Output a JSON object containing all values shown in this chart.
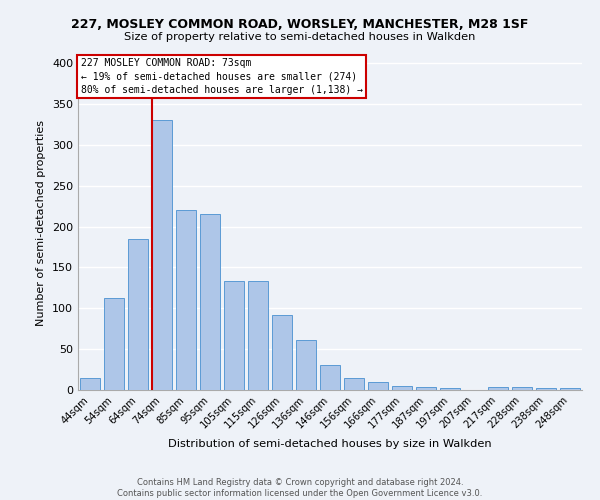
{
  "title_line1": "227, MOSLEY COMMON ROAD, WORSLEY, MANCHESTER, M28 1SF",
  "title_line2": "Size of property relative to semi-detached houses in Walkden",
  "xlabel": "Distribution of semi-detached houses by size in Walkden",
  "ylabel": "Number of semi-detached properties",
  "footer": "Contains HM Land Registry data © Crown copyright and database right 2024.\nContains public sector information licensed under the Open Government Licence v3.0.",
  "categories": [
    "44sqm",
    "54sqm",
    "64sqm",
    "74sqm",
    "85sqm",
    "95sqm",
    "105sqm",
    "115sqm",
    "126sqm",
    "136sqm",
    "146sqm",
    "156sqm",
    "166sqm",
    "177sqm",
    "187sqm",
    "197sqm",
    "207sqm",
    "217sqm",
    "228sqm",
    "238sqm",
    "248sqm"
  ],
  "values": [
    15,
    113,
    185,
    330,
    220,
    216,
    133,
    133,
    92,
    61,
    31,
    15,
    10,
    5,
    4,
    2,
    0,
    4,
    4,
    3,
    3
  ],
  "bar_color": "#aec6e8",
  "bar_edge_color": "#5b9bd5",
  "property_label": "227 MOSLEY COMMON ROAD: 73sqm",
  "annotation_line2": "← 19% of semi-detached houses are smaller (274)",
  "annotation_line3": "80% of semi-detached houses are larger (1,138) →",
  "vline_color": "#cc0000",
  "vline_x_index": 3,
  "annotation_box_color": "#cc0000",
  "ylim": [
    0,
    410
  ],
  "yticks": [
    0,
    50,
    100,
    150,
    200,
    250,
    300,
    350,
    400
  ],
  "background_color": "#eef2f8",
  "grid_color": "#ffffff"
}
